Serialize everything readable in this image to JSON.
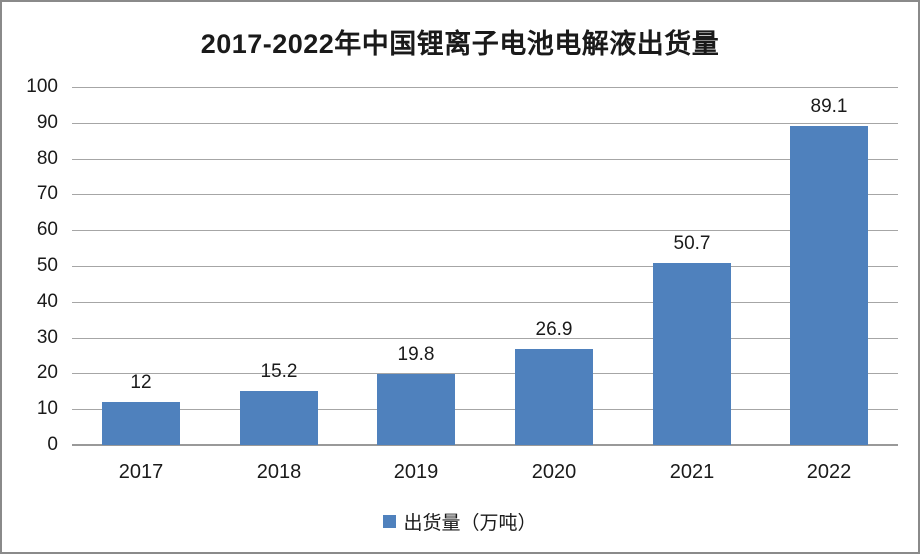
{
  "chart_data": {
    "type": "bar",
    "title": "2017-2022年中国锂离子电池电解液出货量",
    "categories": [
      "2017",
      "2018",
      "2019",
      "2020",
      "2021",
      "2022"
    ],
    "values": [
      12,
      15.2,
      19.8,
      26.9,
      50.7,
      89.1
    ],
    "value_labels": [
      "12",
      "15.2",
      "19.8",
      "26.9",
      "50.7",
      "89.1"
    ],
    "xlabel": "",
    "ylabel": "",
    "ylim": [
      0,
      100
    ],
    "yticks": [
      0,
      10,
      20,
      30,
      40,
      50,
      60,
      70,
      80,
      90,
      100
    ],
    "grid": true,
    "legend": [
      {
        "label": "出货量（万吨）",
        "color": "#4F81BD"
      }
    ],
    "legend_position": "bottom",
    "bar_color": "#4F81BD",
    "gridline_color": "#A6A6A6",
    "axis_line_color": "#999999",
    "text_color": "#1A1A1A",
    "frame_border_color": "#8A8A8A",
    "background_color": "#FFFFFF"
  }
}
